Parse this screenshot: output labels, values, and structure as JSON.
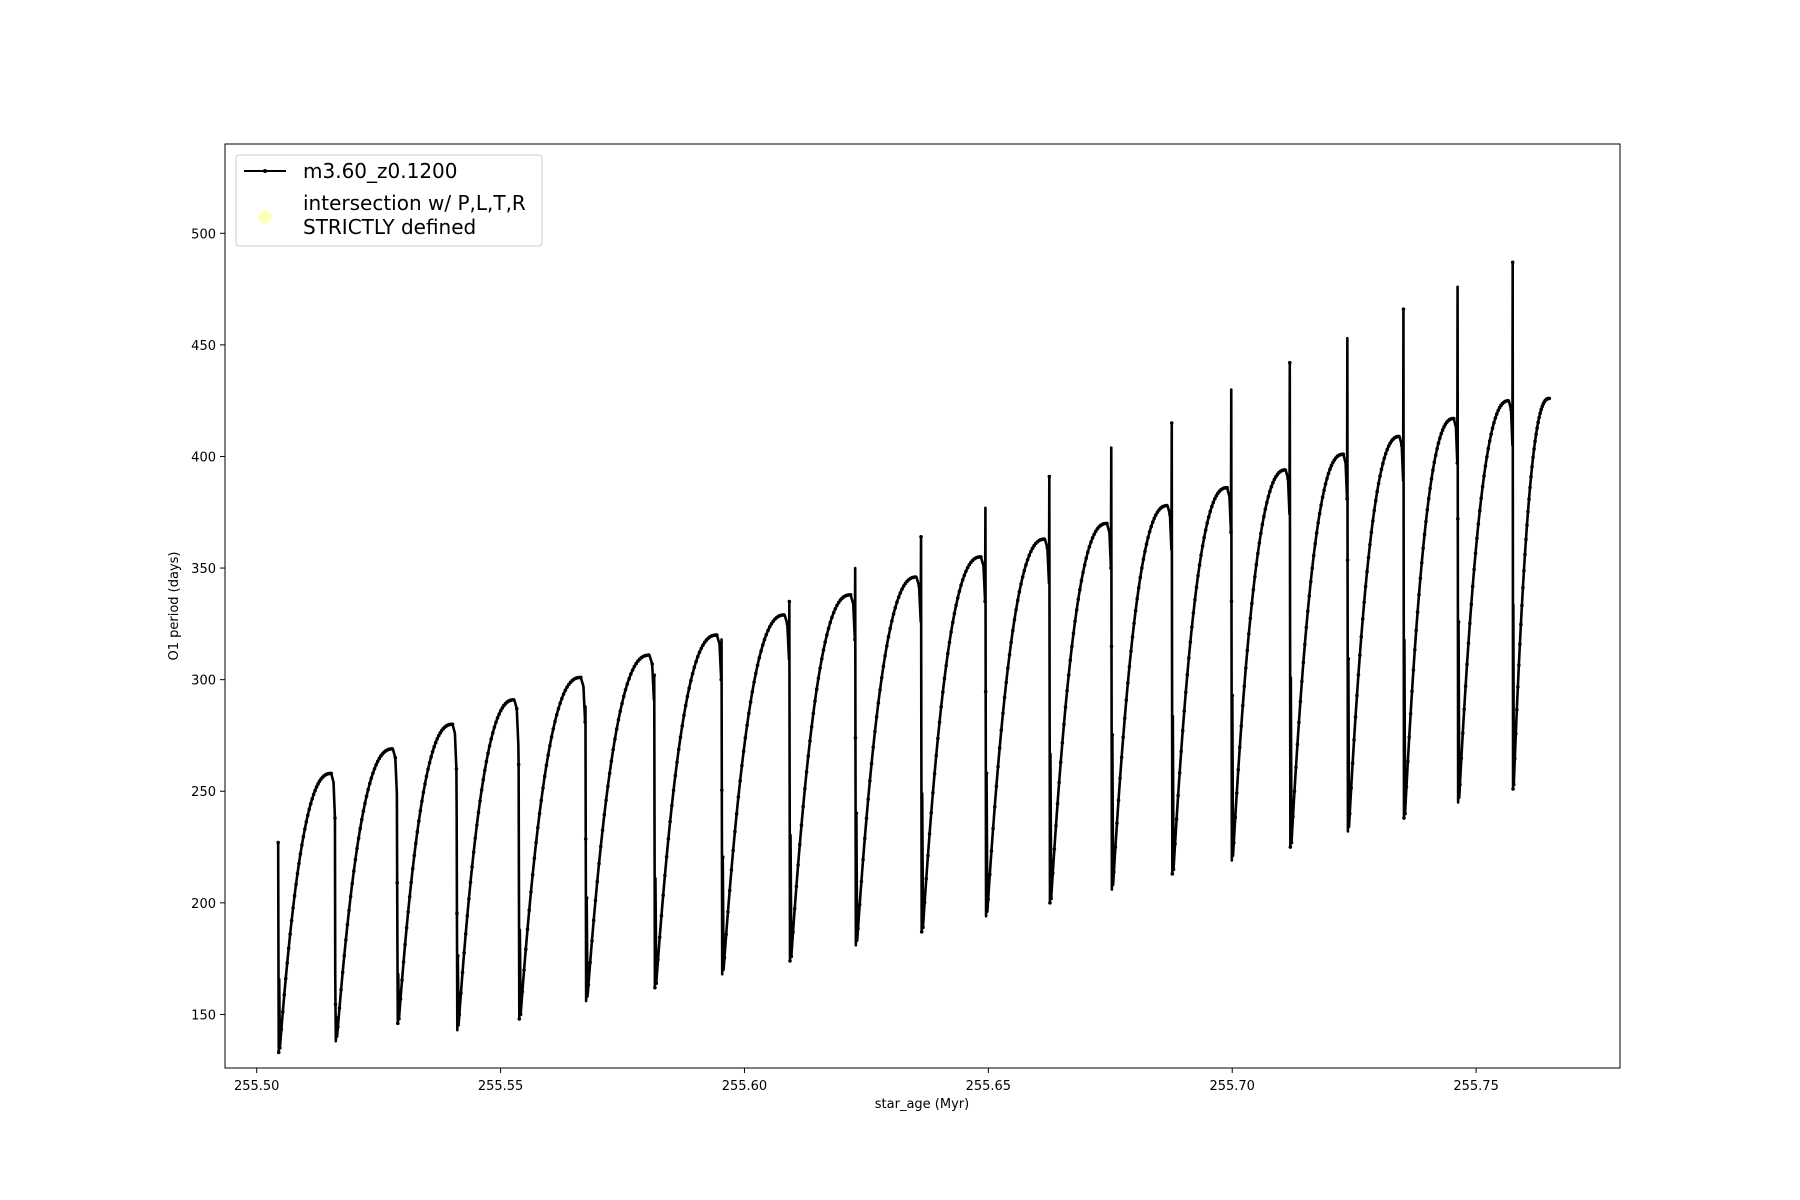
{
  "chart_data": {
    "type": "line",
    "title": "",
    "xlabel": "star_age (Myr)",
    "ylabel": "O1 period (days)",
    "xlim": [
      255.4935,
      255.7795
    ],
    "ylim": [
      126,
      540
    ],
    "xticks": [
      255.5,
      255.55,
      255.6,
      255.65,
      255.7,
      255.75
    ],
    "xtick_labels": [
      "255.50",
      "255.55",
      "255.60",
      "255.65",
      "255.70",
      "255.75"
    ],
    "yticks": [
      150,
      200,
      250,
      300,
      350,
      400,
      450,
      500
    ],
    "ytick_labels": [
      "150",
      "200",
      "250",
      "300",
      "350",
      "400",
      "450",
      "500"
    ],
    "grid": false,
    "legend_position": "upper-left",
    "legend": [
      {
        "label": "m3.60_z0.1200",
        "marker": "line-with-dots",
        "color": "#000000"
      },
      {
        "label_lines": [
          "intersection w/ P,L,T,R",
          "STRICTLY defined"
        ],
        "marker": "circle",
        "color": "#ffffc0"
      }
    ],
    "series": [
      {
        "name": "m3.60_z0.1200",
        "color": "#000000",
        "marker": "dot",
        "cycles": [
          {
            "start": 255.5044,
            "end": 255.5161,
            "spike_max": 227,
            "min": 133,
            "peak": 258
          },
          {
            "start": 255.5161,
            "end": 255.5288,
            "spike_max": 168,
            "min": 138,
            "peak": 269
          },
          {
            "start": 255.5288,
            "end": 255.541,
            "spike_max": 209,
            "min": 146,
            "peak": 280
          },
          {
            "start": 255.541,
            "end": 255.5537,
            "spike_max": 238,
            "min": 143,
            "peak": 291
          },
          {
            "start": 255.5537,
            "end": 255.5674,
            "spike_max": 262,
            "min": 148,
            "peak": 301
          },
          {
            "start": 255.5674,
            "end": 255.5815,
            "spike_max": 288,
            "min": 156,
            "peak": 311
          },
          {
            "start": 255.5815,
            "end": 255.5953,
            "spike_max": 302,
            "min": 162,
            "peak": 320
          },
          {
            "start": 255.5953,
            "end": 255.6092,
            "spike_max": 318,
            "min": 168,
            "peak": 329
          },
          {
            "start": 255.6092,
            "end": 255.6227,
            "spike_max": 335,
            "min": 174,
            "peak": 338
          },
          {
            "start": 255.6227,
            "end": 255.6362,
            "spike_max": 350,
            "min": 181,
            "peak": 346
          },
          {
            "start": 255.6362,
            "end": 255.6494,
            "spike_max": 364,
            "min": 187,
            "peak": 355
          },
          {
            "start": 255.6494,
            "end": 255.6625,
            "spike_max": 377,
            "min": 194,
            "peak": 363
          },
          {
            "start": 255.6625,
            "end": 255.6752,
            "spike_max": 391,
            "min": 200,
            "peak": 370
          },
          {
            "start": 255.6752,
            "end": 255.6876,
            "spike_max": 404,
            "min": 206,
            "peak": 378
          },
          {
            "start": 255.6876,
            "end": 255.6998,
            "spike_max": 415,
            "min": 213,
            "peak": 386
          },
          {
            "start": 255.6998,
            "end": 255.7118,
            "spike_max": 430,
            "min": 219,
            "peak": 394
          },
          {
            "start": 255.7118,
            "end": 255.7236,
            "spike_max": 442,
            "min": 225,
            "peak": 401
          },
          {
            "start": 255.7236,
            "end": 255.7351,
            "spike_max": 453,
            "min": 232,
            "peak": 409
          },
          {
            "start": 255.7351,
            "end": 255.7462,
            "spike_max": 466,
            "min": 238,
            "peak": 417
          },
          {
            "start": 255.7462,
            "end": 255.7575,
            "spike_max": 476,
            "min": 245,
            "peak": 425
          },
          {
            "start": 255.7575,
            "end": 255.765,
            "spike_max": 487,
            "min": 251,
            "peak": 426
          }
        ]
      }
    ]
  }
}
